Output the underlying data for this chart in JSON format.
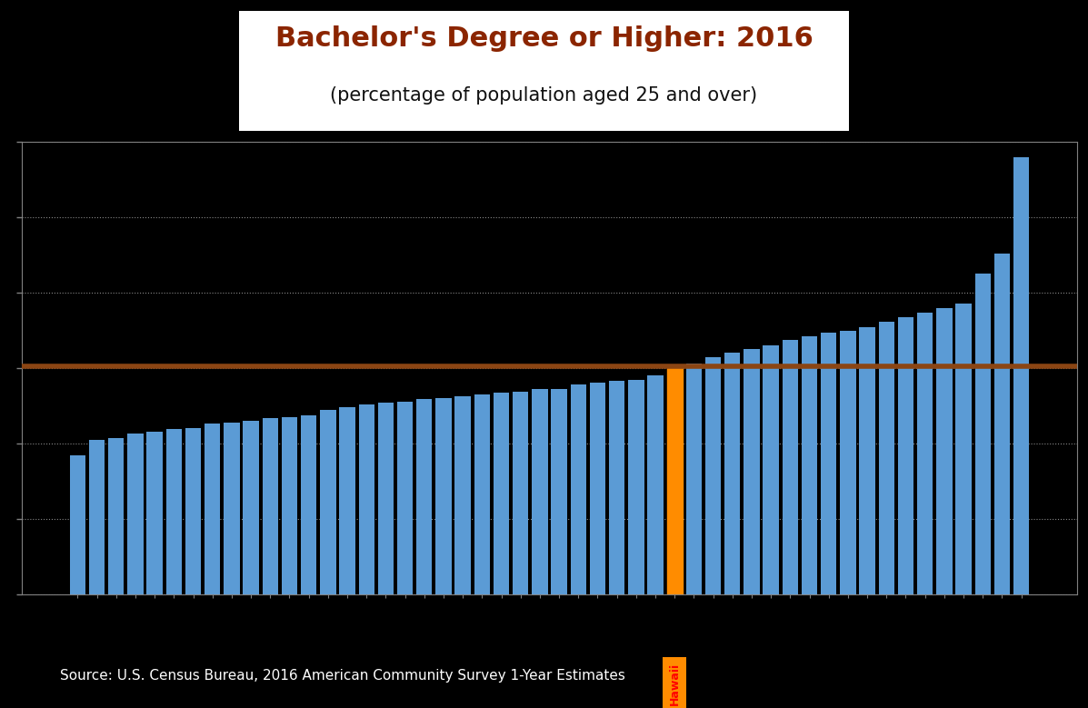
{
  "title_line1": "Bachelor's Degree or Higher: 2016",
  "title_line2": "(percentage of population aged 25 and over)",
  "source_text": "Source: U.S. Census Bureau, 2016 American Community Survey 1-Year Estimates",
  "background_color": "#000000",
  "bar_color": "#5B9BD5",
  "hawaii_bar_color": "#FF8C00",
  "hawaii_label_color": "#FF0000",
  "hawaii_label_bg": "#FF8C00",
  "reference_line_color": "#8B4513",
  "reference_line_value": 30.3,
  "title_color": "#8B2500",
  "subtitle_color": "#111111",
  "title_bg": "#FFFFFF",
  "values": [
    18.5,
    20.5,
    20.8,
    21.4,
    21.6,
    22.0,
    22.1,
    22.7,
    22.8,
    23.0,
    23.4,
    23.5,
    23.8,
    24.5,
    24.8,
    25.2,
    25.4,
    25.6,
    25.9,
    26.0,
    26.3,
    26.5,
    26.8,
    26.9,
    27.2,
    27.3,
    27.8,
    28.1,
    28.3,
    28.5,
    29.0,
    30.0,
    30.6,
    31.5,
    32.0,
    32.5,
    33.0,
    33.8,
    34.2,
    34.7,
    35.0,
    35.4,
    36.2,
    36.7,
    37.3,
    37.9,
    38.5,
    42.5,
    45.2,
    57.9
  ],
  "hawaii_index": 31,
  "ylim_max": 60,
  "ytick_interval": 10,
  "source_color": "#FFFFFF",
  "grid_color": "#888888"
}
